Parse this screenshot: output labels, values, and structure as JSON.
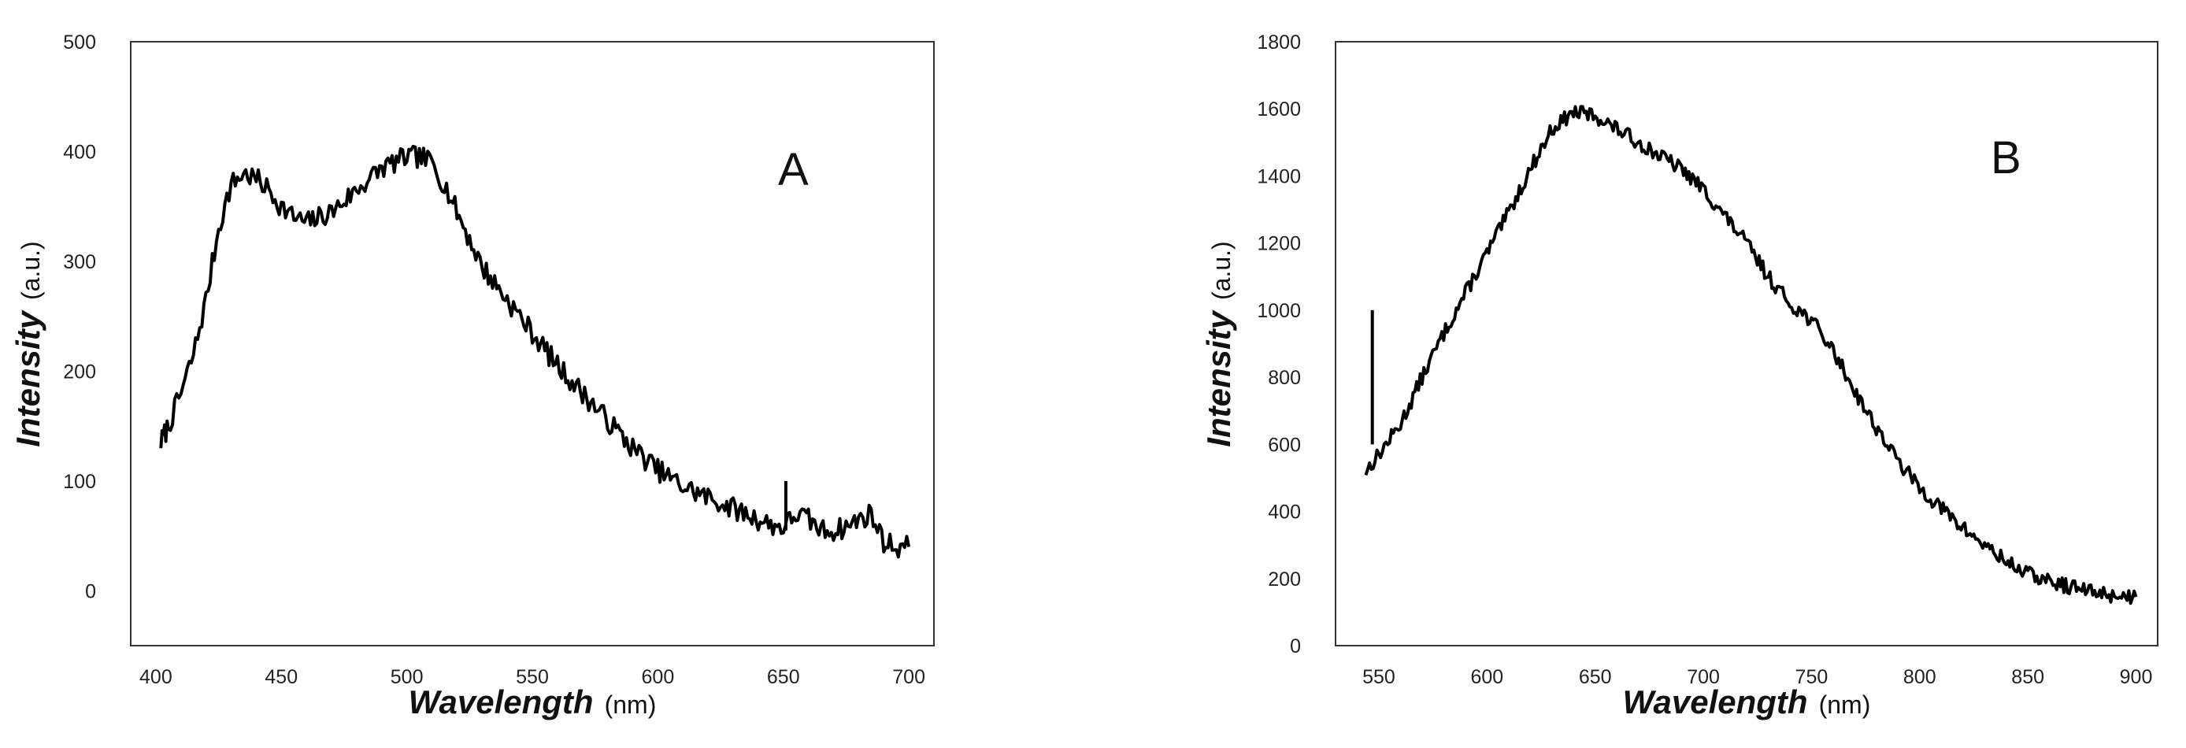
{
  "chart_data": [
    {
      "type": "line",
      "panel_label": "A",
      "xlabel": "Wavelength",
      "xlabel_unit": "(nm)",
      "ylabel": "Intensity",
      "ylabel_unit": "(a.u.)",
      "xlim": [
        390,
        710
      ],
      "ylim": [
        -50,
        500
      ],
      "x_ticks": [
        400,
        450,
        500,
        550,
        600,
        650,
        700
      ],
      "y_ticks": [
        0,
        100,
        200,
        300,
        400,
        500
      ],
      "grid": false,
      "series": [
        {
          "x": [
            402,
            405,
            410,
            415,
            420,
            425,
            430,
            435,
            440,
            445,
            450,
            455,
            460,
            465,
            470,
            475,
            480,
            485,
            490,
            495,
            500,
            505,
            510,
            515,
            520,
            525,
            530,
            540,
            550,
            560,
            570,
            580,
            590,
            600,
            610,
            620,
            630,
            640,
            645,
            650,
            655,
            660,
            665,
            670,
            675,
            680,
            685,
            690,
            695,
            700
          ],
          "y": [
            135,
            150,
            180,
            215,
            265,
            330,
            370,
            380,
            375,
            365,
            350,
            340,
            335,
            340,
            345,
            355,
            365,
            375,
            385,
            390,
            395,
            395,
            390,
            370,
            345,
            320,
            295,
            265,
            235,
            205,
            180,
            155,
            130,
            110,
            95,
            85,
            75,
            65,
            60,
            58,
            70,
            65,
            55,
            55,
            58,
            65,
            70,
            45,
            40,
            40
          ]
        }
      ],
      "annotations": [
        {
          "x": 651,
          "y0": 55,
          "y1": 100
        }
      ]
    },
    {
      "type": "line",
      "panel_label": "B",
      "xlabel": "Wavelength",
      "xlabel_unit": "(nm)",
      "ylabel": "Intensity",
      "ylabel_unit": "(a.u.)",
      "xlim": [
        530,
        910
      ],
      "ylim": [
        0,
        1800
      ],
      "x_ticks": [
        550,
        600,
        650,
        700,
        750,
        800,
        850,
        900
      ],
      "y_ticks": [
        0,
        200,
        400,
        600,
        800,
        1000,
        1200,
        1400,
        1600,
        1800
      ],
      "grid": false,
      "series": [
        {
          "x": [
            544,
            550,
            560,
            570,
            580,
            590,
            600,
            610,
            620,
            630,
            640,
            650,
            660,
            670,
            680,
            690,
            700,
            710,
            720,
            730,
            740,
            750,
            760,
            770,
            780,
            790,
            800,
            810,
            820,
            830,
            840,
            850,
            860,
            870,
            880,
            890,
            900
          ],
          "y": [
            520,
            570,
            660,
            800,
            930,
            1050,
            1170,
            1290,
            1420,
            1540,
            1590,
            1580,
            1540,
            1500,
            1460,
            1420,
            1360,
            1280,
            1200,
            1100,
            1020,
            970,
            880,
            760,
            650,
            550,
            470,
            410,
            350,
            300,
            250,
            215,
            190,
            175,
            160,
            150,
            145
          ]
        }
      ],
      "annotations": [
        {
          "x": 547,
          "y0": 600,
          "y1": 1000
        }
      ]
    }
  ]
}
